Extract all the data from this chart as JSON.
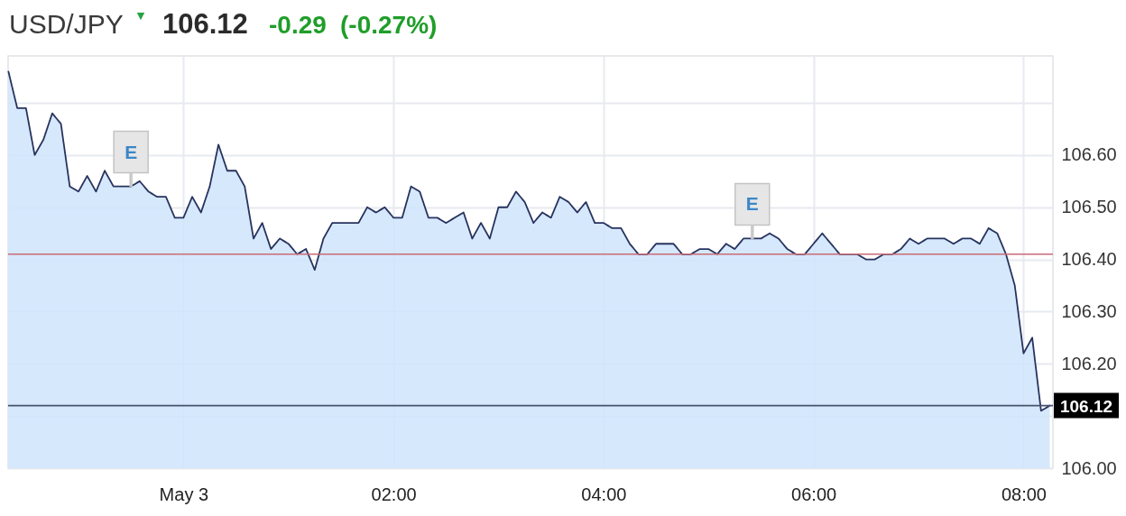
{
  "chart_data": {
    "type": "area",
    "title": "USD/JPY",
    "annotations": [
      "▼",
      "106.12",
      "-0.29",
      "(-0.27%)",
      {
        "text": "E",
        "x": -0.5,
        "y": 106.54
      },
      {
        "text": "E",
        "x": 5.417,
        "y": 106.44
      }
    ],
    "x": [
      -1.667,
      -1.583,
      -1.5,
      -1.417,
      -1.333,
      -1.25,
      -1.167,
      -1.083,
      -1,
      -0.917,
      -0.833,
      -0.75,
      -0.667,
      -0.583,
      -0.5,
      -0.417,
      -0.333,
      -0.25,
      -0.167,
      -0.083,
      0,
      0.083,
      0.167,
      0.25,
      0.333,
      0.417,
      0.5,
      0.583,
      0.667,
      0.75,
      0.833,
      0.917,
      1,
      1.083,
      1.167,
      1.25,
      1.333,
      1.417,
      1.5,
      1.583,
      1.667,
      1.75,
      1.833,
      1.917,
      2,
      2.083,
      2.167,
      2.25,
      2.333,
      2.417,
      2.5,
      2.583,
      2.667,
      2.75,
      2.833,
      2.917,
      3,
      3.083,
      3.167,
      3.25,
      3.333,
      3.417,
      3.5,
      3.583,
      3.667,
      3.75,
      3.833,
      3.917,
      4,
      4.083,
      4.167,
      4.25,
      4.333,
      4.417,
      4.5,
      4.583,
      4.667,
      4.75,
      4.833,
      4.917,
      5,
      5.083,
      5.167,
      5.25,
      5.333,
      5.417,
      5.5,
      5.583,
      5.667,
      5.75,
      5.833,
      5.917,
      6,
      6.083,
      6.167,
      6.25,
      6.333,
      6.417,
      6.5,
      6.583,
      6.667,
      6.75,
      6.833,
      6.917,
      7,
      7.083,
      7.167,
      7.25,
      7.333,
      7.417,
      7.5,
      7.583,
      7.667,
      7.75,
      7.833,
      7.917,
      8,
      8.083,
      8.167,
      8.25
    ],
    "series": [
      {
        "color": "#27335e",
        "values": [
          106.76,
          106.69,
          106.69,
          106.6,
          106.63,
          106.68,
          106.66,
          106.54,
          106.53,
          106.56,
          106.53,
          106.57,
          106.54,
          106.54,
          106.54,
          106.55,
          106.53,
          106.52,
          106.52,
          106.48,
          106.48,
          106.52,
          106.49,
          106.54,
          106.62,
          106.57,
          106.57,
          106.54,
          106.44,
          106.47,
          106.42,
          106.44,
          106.43,
          106.41,
          106.42,
          106.38,
          106.44,
          106.47,
          106.47,
          106.47,
          106.47,
          106.5,
          106.49,
          106.5,
          106.48,
          106.48,
          106.54,
          106.53,
          106.48,
          106.48,
          106.47,
          106.48,
          106.49,
          106.44,
          106.47,
          106.44,
          106.5,
          106.5,
          106.53,
          106.51,
          106.47,
          106.49,
          106.48,
          106.52,
          106.51,
          106.49,
          106.51,
          106.47,
          106.47,
          106.46,
          106.46,
          106.43,
          106.41,
          106.41,
          106.43,
          106.43,
          106.43,
          106.41,
          106.41,
          106.42,
          106.42,
          106.41,
          106.43,
          106.42,
          106.44,
          106.44,
          106.44,
          106.45,
          106.44,
          106.42,
          106.41,
          106.41,
          106.43,
          106.45,
          106.43,
          106.41,
          106.41,
          106.41,
          106.4,
          106.4,
          106.41,
          106.41,
          106.42,
          106.44,
          106.43,
          106.44,
          106.44,
          106.44,
          106.43,
          106.44,
          106.44,
          106.43,
          106.46,
          106.45,
          106.41,
          106.35,
          106.22,
          106.25,
          106.11,
          106.12
        ]
      }
    ],
    "xlim": [
      -1.67,
      8.28
    ],
    "ylim": [
      106.0,
      106.79
    ],
    "xticks": [
      {
        "value": 0,
        "label": "May 3"
      },
      {
        "value": 2,
        "label": "02:00"
      },
      {
        "value": 4,
        "label": "04:00"
      },
      {
        "value": 6,
        "label": "06:00"
      },
      {
        "value": 8,
        "label": "08:00"
      }
    ],
    "yticks": [
      {
        "value": 106.0,
        "label": "106.00"
      },
      {
        "value": 106.1,
        "label": null
      },
      {
        "value": 106.2,
        "label": "106.20"
      },
      {
        "value": 106.3,
        "label": "106.30"
      },
      {
        "value": 106.4,
        "label": "106.40"
      },
      {
        "value": 106.5,
        "label": "106.50"
      },
      {
        "value": 106.6,
        "label": "106.60"
      },
      {
        "value": 106.7,
        "label": null
      }
    ],
    "ref_lines": [
      {
        "axis": "y",
        "value": 106.41,
        "color": "#c96b77"
      },
      {
        "axis": "y",
        "value": 106.12,
        "label": "106.12",
        "color": "#46536d"
      }
    ],
    "grid": true
  }
}
